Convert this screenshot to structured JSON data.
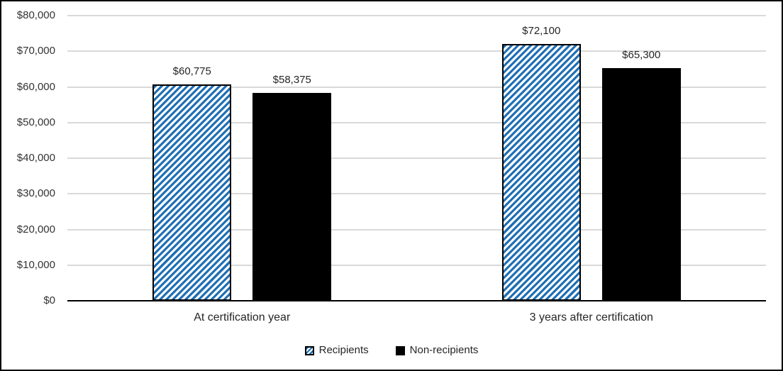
{
  "figure": {
    "background": "#ffffff",
    "border_color": "#000000"
  },
  "chart_data": {
    "type": "bar",
    "title": "",
    "xlabel": "",
    "ylabel": "",
    "categories": [
      "At certification year",
      "3 years after certification"
    ],
    "series": [
      {
        "name": "Recipients",
        "values": [
          60775,
          72100
        ],
        "data_labels": [
          "$60,775",
          "$72,100"
        ],
        "fill": "diagonal-stripe",
        "pattern_color": "#1f6fb4",
        "pattern_bg": "#ffffff",
        "border_color": "#000000"
      },
      {
        "name": "Non-recipients",
        "values": [
          58375,
          65300
        ],
        "data_labels": [
          "$58,375",
          "$65,300"
        ],
        "fill": "solid",
        "color": "#000000"
      }
    ],
    "ylim": [
      0,
      80000
    ],
    "ytick_interval": 10000,
    "ytick_labels": [
      "$0",
      "$10,000",
      "$20,000",
      "$30,000",
      "$40,000",
      "$50,000",
      "$60,000",
      "$70,000",
      "$80,000"
    ],
    "grid": true,
    "gridline_color": "#d9d9d9",
    "axis_line_color": "#000000",
    "text_color": "#262626",
    "legend_position": "bottom"
  }
}
